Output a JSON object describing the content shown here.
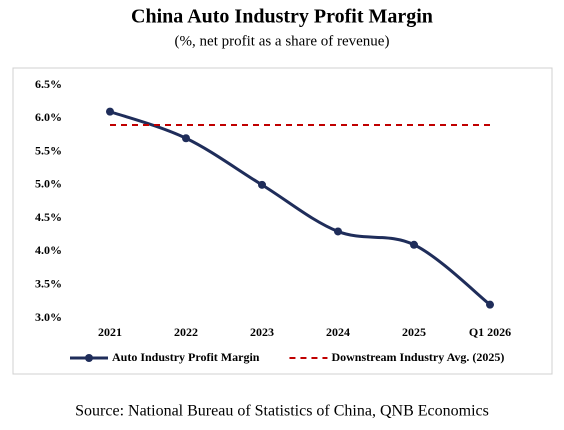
{
  "chart_data": {
    "type": "line",
    "title": "China Auto Industry Profit Margin",
    "subtitle": "(%, net profit as a share of revenue)",
    "categories": [
      "2021",
      "2022",
      "2023",
      "2024",
      "2025",
      "Q1 2026"
    ],
    "series": [
      {
        "name": "Auto Industry Profit Margin",
        "color": "#1f2d5a",
        "style": "solid",
        "markers": true,
        "values": [
          6.1,
          5.7,
          5.0,
          4.3,
          4.1,
          3.2
        ]
      },
      {
        "name": "Downstream Industry Avg. (2025)",
        "color": "#c00000",
        "style": "dashed",
        "markers": false,
        "values": [
          5.9,
          5.9,
          5.9,
          5.9,
          5.9,
          5.9
        ]
      }
    ],
    "ylim": [
      3.0,
      6.5
    ],
    "yticks": [
      {
        "value": 3.0,
        "label": "3.0%"
      },
      {
        "value": 3.5,
        "label": "3.5%"
      },
      {
        "value": 4.0,
        "label": "4.0%"
      },
      {
        "value": 4.5,
        "label": "4.5%"
      },
      {
        "value": 5.0,
        "label": "5.0%"
      },
      {
        "value": 5.5,
        "label": "5.5%"
      },
      {
        "value": 6.0,
        "label": "6.0%"
      },
      {
        "value": 6.5,
        "label": "6.5%"
      }
    ],
    "grid": false,
    "legend": "bottom",
    "source": "Source: National Bureau of Statistics of China, QNB Economics"
  }
}
